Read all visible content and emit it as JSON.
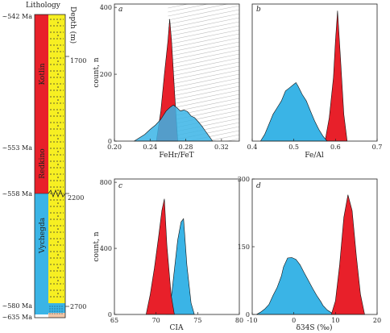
{
  "colors": {
    "red": "#e8202a",
    "blue": "#3ab4e6",
    "yellow": "#f7ef22",
    "overlap": "#2f6f86",
    "axis": "#222222",
    "hatch": "#bcbcbc"
  },
  "lithology": {
    "title": "Lithology",
    "depth_label": "Depth (m)",
    "units": [
      "Kotlin",
      "Redkino",
      "Vychegda"
    ],
    "ages": [
      {
        "label": "~542 Ma",
        "age": 542
      },
      {
        "label": "~553 Ma",
        "age": 553
      },
      {
        "label": "~558 Ma",
        "age": 558
      },
      {
        "label": "~580 Ma",
        "age": 580
      },
      {
        "label": "~635 Ma",
        "age": 635
      }
    ],
    "depth_ticks": [
      "1700",
      "2200",
      "2700"
    ]
  },
  "chart_data": [
    {
      "panel": "a",
      "type": "area",
      "xlabel": "FeHr/FeT",
      "ylabel": "count, n",
      "xlim": [
        0.2,
        0.34
      ],
      "ylim": [
        0,
        410
      ],
      "xticks": [
        "0.20",
        "0.24",
        "0.28",
        "0.32"
      ],
      "yticks": [
        "0",
        "200",
        "400"
      ],
      "hatch_region": [
        0.26,
        0.34
      ],
      "series": [
        {
          "color": "red",
          "x": [
            0.247,
            0.252,
            0.256,
            0.26,
            0.262,
            0.264,
            0.268,
            0.271
          ],
          "y": [
            0,
            90,
            200,
            300,
            365,
            300,
            120,
            0
          ]
        },
        {
          "color": "blue",
          "x": [
            0.222,
            0.228,
            0.234,
            0.24,
            0.246,
            0.252,
            0.258,
            0.262,
            0.266,
            0.27,
            0.274,
            0.278,
            0.282,
            0.286,
            0.29,
            0.294,
            0.298,
            0.302,
            0.306,
            0.31
          ],
          "y": [
            0,
            10,
            20,
            35,
            48,
            65,
            90,
            100,
            108,
            100,
            90,
            93,
            88,
            75,
            70,
            58,
            45,
            30,
            15,
            0
          ]
        }
      ]
    },
    {
      "panel": "b",
      "type": "area",
      "xlabel": "Fe/Al",
      "ylabel": "",
      "xlim": [
        0.4,
        0.7
      ],
      "ylim": [
        0,
        410
      ],
      "xticks": [
        "0.4",
        "0.5",
        "0.6",
        "0.7"
      ],
      "yticks": [],
      "series": [
        {
          "color": "red",
          "x": [
            0.575,
            0.585,
            0.595,
            0.6,
            0.605,
            0.612,
            0.62,
            0.628
          ],
          "y": [
            0,
            70,
            190,
            300,
            390,
            250,
            80,
            0
          ]
        },
        {
          "color": "blue",
          "x": [
            0.42,
            0.43,
            0.44,
            0.45,
            0.46,
            0.47,
            0.48,
            0.49,
            0.5,
            0.505,
            0.51,
            0.52,
            0.53,
            0.54,
            0.55,
            0.56,
            0.57,
            0.58
          ],
          "y": [
            0,
            20,
            50,
            80,
            100,
            120,
            150,
            160,
            170,
            175,
            165,
            140,
            120,
            90,
            60,
            35,
            15,
            0
          ]
        }
      ]
    },
    {
      "panel": "c",
      "type": "area",
      "xlabel": "CIA",
      "ylabel": "count, n",
      "xlim": [
        65,
        80
      ],
      "ylim": [
        0,
        820
      ],
      "xticks": [
        "65",
        "70",
        "75",
        "80"
      ],
      "yticks": [
        "0",
        "400",
        "800"
      ],
      "series": [
        {
          "color": "blue",
          "x": [
            71.2,
            71.8,
            72.2,
            72.6,
            73.0,
            73.3,
            73.7,
            74.2,
            74.6
          ],
          "y": [
            0,
            90,
            270,
            450,
            560,
            580,
            300,
            70,
            0
          ]
        },
        {
          "color": "red",
          "x": [
            68.8,
            69.3,
            69.8,
            70.3,
            70.7,
            71.0,
            71.3,
            71.8,
            72.2
          ],
          "y": [
            0,
            120,
            280,
            470,
            630,
            700,
            420,
            120,
            0
          ]
        }
      ]
    },
    {
      "panel": "d",
      "type": "area",
      "xlabel": "δ34S (‰)",
      "ylabel": "",
      "xlim": [
        -10,
        20
      ],
      "ylim": [
        0,
        300
      ],
      "xticks": [
        "-10",
        "0",
        "10",
        "20"
      ],
      "yticks": [
        "0",
        "150",
        "300"
      ],
      "series": [
        {
          "color": "blue",
          "x": [
            -9.0,
            -8.0,
            -7.0,
            -6.0,
            -5.0,
            -4.0,
            -3.0,
            -2.5,
            -1.5,
            -0.5,
            0.5,
            1.5,
            2.5,
            3.5,
            4.5,
            5.5,
            6.5,
            7.0,
            8.0,
            9.0,
            10.0
          ],
          "y": [
            0,
            5,
            12,
            22,
            42,
            60,
            85,
            105,
            125,
            126,
            122,
            110,
            92,
            75,
            58,
            42,
            28,
            20,
            10,
            4,
            0
          ]
        },
        {
          "color": "red",
          "x": [
            9.0,
            10.0,
            11.0,
            12.0,
            13.0,
            14.0,
            15.0,
            16.0,
            17.0
          ],
          "y": [
            0,
            30,
            110,
            215,
            265,
            230,
            130,
            45,
            0
          ]
        }
      ]
    }
  ]
}
